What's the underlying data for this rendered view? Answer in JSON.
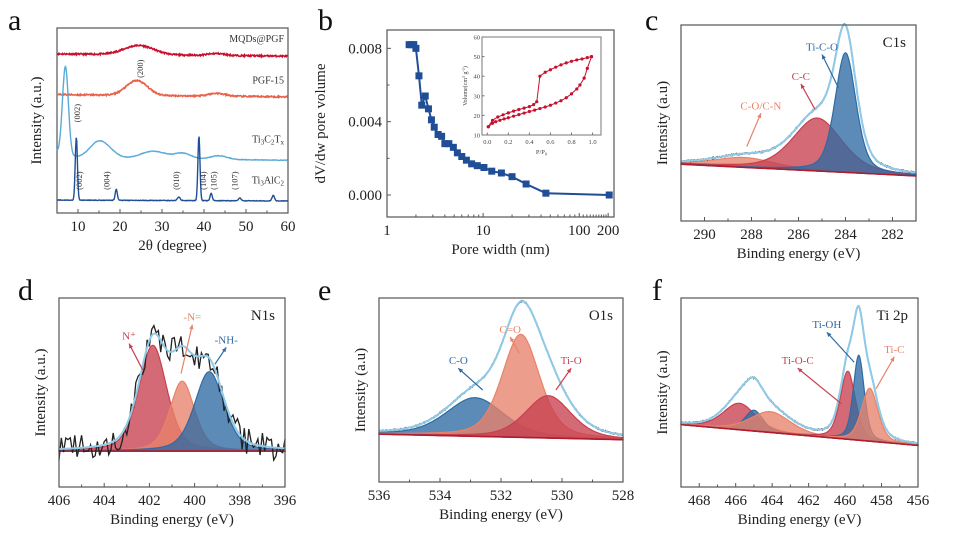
{
  "chart_data": [
    {
      "id": "a",
      "panel_label": "a",
      "type": "line",
      "title": "",
      "xlabel": "2θ (degree)",
      "ylabel": "Intensity (a.u.)",
      "xlim": [
        5,
        60
      ],
      "xticks": [
        10,
        20,
        30,
        40,
        50,
        60
      ],
      "yticks_visible": false,
      "series": [
        {
          "name": "MQDs@PGF",
          "color": "#c8102e",
          "offset": 0.86,
          "profile": "broad_hump",
          "peaks": [
            [
              24.5,
              0.05,
              3.5
            ],
            [
              43,
              0.01,
              2
            ]
          ]
        },
        {
          "name": "PGF-15",
          "color": "#e8624a",
          "offset": 0.64,
          "profile": "broad_hump",
          "peaks": [
            [
              24,
              0.08,
              2.5
            ],
            [
              43,
              0.015,
              2
            ]
          ]
        },
        {
          "name": "Ti3C2Tx",
          "color": "#5aaad8",
          "offset": 0.3,
          "profile": "xrd",
          "peaks": [
            [
              7.0,
              0.48,
              0.7
            ],
            [
              14.5,
              0.07,
              2.0
            ],
            [
              17,
              0.04,
              2
            ],
            [
              28,
              0.04,
              3
            ],
            [
              35,
              0.03,
              2
            ],
            [
              43.5,
              0.02,
              2
            ]
          ]
        },
        {
          "name": "Ti3AlC2",
          "color": "#1f4e96",
          "offset": 0.07,
          "profile": "xrd",
          "peaks": [
            [
              9.6,
              0.34,
              0.25
            ],
            [
              19.1,
              0.06,
              0.25
            ],
            [
              34,
              0.02,
              0.3
            ],
            [
              38.8,
              0.35,
              0.25
            ],
            [
              41.7,
              0.04,
              0.25
            ],
            [
              48.5,
              0.015,
              0.3
            ],
            [
              56.5,
              0.03,
              0.3
            ]
          ]
        }
      ],
      "series_labels": [
        {
          "text": "MQDs@PGF",
          "html": "MQDs@PGF"
        },
        {
          "text": "PGF-15",
          "html": "PGF-15"
        },
        {
          "text": "Ti3C2Tx",
          "main": "Ti",
          "sub1": "3",
          "mid": "C",
          "sub2": "2",
          "end": "T",
          "sub3": "x"
        },
        {
          "text": "Ti3AlC2",
          "main": "Ti",
          "sub1": "3",
          "mid": "AlC",
          "sub2": "2"
        }
      ],
      "annotations": [
        {
          "text": "(200)",
          "x": 25.5,
          "series": "PGF-15"
        },
        {
          "text": "(002)",
          "x": 10.5,
          "series": "Ti3C2Tx"
        },
        {
          "text": "(002)",
          "x": 11.0,
          "series": "Ti3AlC2"
        },
        {
          "text": "(004)",
          "x": 17.5,
          "series": "Ti3AlC2"
        },
        {
          "text": "(010)",
          "x": 34.0,
          "series": "Ti3AlC2"
        },
        {
          "text": "(104)",
          "x": 40.5,
          "series": "Ti3AlC2"
        },
        {
          "text": "(105)",
          "x": 43.0,
          "series": "Ti3AlC2"
        },
        {
          "text": "(107)",
          "x": 48.0,
          "series": "Ti3AlC2"
        }
      ]
    },
    {
      "id": "b",
      "panel_label": "b",
      "type": "line",
      "title": "",
      "xlabel": "Pore width (nm)",
      "ylabel": "dV/dw pore volume",
      "xscale": "log",
      "xlim": [
        1,
        230
      ],
      "ylim": [
        -0.0012,
        0.009
      ],
      "xticks": [
        1,
        10,
        100,
        200
      ],
      "yticks": [
        0.0,
        0.004,
        0.008
      ],
      "ytick_labels": [
        "0.000",
        "0.004",
        "0.008"
      ],
      "series": [
        {
          "name": "pore size distribution",
          "color": "#1f4e96",
          "marker": "square",
          "x": [
            1.7,
            1.8,
            1.9,
            2.0,
            2.15,
            2.3,
            2.5,
            2.7,
            2.9,
            3.1,
            3.4,
            3.7,
            4.0,
            4.4,
            4.9,
            5.4,
            6.0,
            6.7,
            7.6,
            8.7,
            10.2,
            12.3,
            15.5,
            20.0,
            28.0,
            45.0,
            205.0
          ],
          "y": [
            0.0082,
            0.0082,
            0.0082,
            0.008,
            0.0065,
            0.0049,
            0.0054,
            0.0047,
            0.0041,
            0.0037,
            0.0033,
            0.0032,
            0.0028,
            0.0028,
            0.0026,
            0.0023,
            0.0021,
            0.0019,
            0.0017,
            0.0016,
            0.0015,
            0.0013,
            0.0012,
            0.001,
            0.0006,
            0.0001,
            0.0
          ]
        }
      ],
      "inset": {
        "type": "line",
        "xlabel": "P/P0",
        "ylabel": "Volume(cm3 g-1)",
        "xlim": [
          -0.05,
          1.08
        ],
        "ylim": [
          10,
          60
        ],
        "xticks": [
          0.0,
          0.2,
          0.4,
          0.6,
          0.8,
          1.0
        ],
        "xtick_labels": [
          "0.0",
          "0.2",
          "0.4",
          "0.6",
          "0.8",
          "1.0"
        ],
        "yticks": [
          10,
          20,
          30,
          40,
          50,
          60
        ],
        "series": [
          {
            "name": "adsorption",
            "color": "#c8102e",
            "x": [
              0.01,
              0.05,
              0.08,
              0.12,
              0.16,
              0.2,
              0.25,
              0.3,
              0.35,
              0.4,
              0.45,
              0.5,
              0.55,
              0.6,
              0.65,
              0.7,
              0.75,
              0.8,
              0.85,
              0.88,
              0.92,
              0.95,
              0.99
            ],
            "y": [
              14.2,
              16.0,
              16.8,
              17.5,
              18.2,
              18.8,
              19.6,
              20.4,
              21.2,
              22.0,
              22.7,
              23.5,
              24.3,
              25.2,
              26.3,
              27.5,
              29.0,
              31.0,
              33.5,
              35.5,
              39.0,
              44.0,
              50.0
            ]
          },
          {
            "name": "desorption",
            "color": "#c8102e",
            "x": [
              0.99,
              0.95,
              0.9,
              0.85,
              0.8,
              0.75,
              0.7,
              0.65,
              0.6,
              0.55,
              0.5,
              0.47,
              0.44,
              0.4,
              0.35,
              0.3,
              0.25,
              0.2,
              0.15,
              0.1,
              0.05,
              0.01
            ],
            "y": [
              50.0,
              49.5,
              48.8,
              48.3,
              47.6,
              46.8,
              45.8,
              44.6,
              43.3,
              42.0,
              40.0,
              27.0,
              25.5,
              24.5,
              23.7,
              23.0,
              22.2,
              21.3,
              20.3,
              19.2,
              17.5,
              14.2
            ]
          }
        ]
      }
    },
    {
      "id": "c",
      "panel_label": "c",
      "type": "area",
      "title": "C1s",
      "xlabel": "Binding energy (eV)",
      "ylabel": "Intensity (a.u)",
      "xlim": [
        291,
        281
      ],
      "xticks": [
        290,
        288,
        286,
        284,
        282
      ],
      "baseline": {
        "left": 0.29,
        "right": 0.23
      },
      "components": [
        {
          "name": "C-O/C-N",
          "center": 288.3,
          "height": 0.05,
          "width": 1.3,
          "color": "#e8826a",
          "label_color": "#e8826a"
        },
        {
          "name": "C-C",
          "center": 285.2,
          "height": 0.27,
          "width": 1.05,
          "color": "#c8404f",
          "label_color": "#c8404f"
        },
        {
          "name": "Ti-C-O",
          "center": 284.0,
          "height": 0.61,
          "width": 0.45,
          "color": "#2e6aa3",
          "label_color": "#2e6aa3"
        }
      ],
      "envelope_color": "#8fcbe8",
      "raw_color": "#333333",
      "labels": [
        {
          "text": "C-O/C-N",
          "x": 287.6,
          "y": 0.57,
          "arrow_to": [
            288.2,
            0.38
          ]
        },
        {
          "text": "C-C",
          "x": 285.9,
          "y": 0.72,
          "arrow_to": [
            285.3,
            0.57
          ]
        },
        {
          "text": "Ti-C-O",
          "x": 285.0,
          "y": 0.87,
          "arrow_to": [
            284.3,
            0.68
          ]
        }
      ]
    },
    {
      "id": "d",
      "panel_label": "d",
      "type": "area",
      "title": "N1s",
      "xlabel": "Binding energy (eV)",
      "ylabel": "Intensity (a.u.)",
      "xlim": [
        406,
        396
      ],
      "xticks": [
        406,
        404,
        402,
        400,
        398,
        396
      ],
      "baseline": {
        "left": 0.19,
        "right": 0.19
      },
      "components": [
        {
          "name": "N+",
          "center": 401.85,
          "height": 0.56,
          "width": 0.62,
          "color": "#c8404f",
          "label_color": "#c8404f"
        },
        {
          "name": "-N=",
          "center": 400.55,
          "height": 0.37,
          "width": 0.55,
          "color": "#e8826a",
          "label_color": "#e8826a"
        },
        {
          "name": "-NH-",
          "center": 399.35,
          "height": 0.42,
          "width": 0.65,
          "color": "#2e6aa3",
          "label_color": "#2e6aa3"
        }
      ],
      "envelope_color": "#8fcbe8",
      "raw_color": "#222222",
      "noisy": true,
      "labels": [
        {
          "text": "N+",
          "display": "N⁺",
          "x": 402.9,
          "y": 0.78,
          "arrow_to": [
            402.3,
            0.62
          ]
        },
        {
          "text": "-N=",
          "x": 400.1,
          "y": 0.88,
          "arrow_to": [
            400.6,
            0.6
          ]
        },
        {
          "text": "-NH-",
          "x": 398.6,
          "y": 0.76,
          "arrow_to": [
            399.1,
            0.65
          ]
        }
      ]
    },
    {
      "id": "e",
      "panel_label": "e",
      "type": "area",
      "title": "O1s",
      "xlabel": "Binding energy (eV)",
      "ylabel": "Intensity (a.u)",
      "xlim": [
        536,
        528
      ],
      "xticks": [
        536,
        534,
        532,
        530,
        528
      ],
      "baseline": {
        "left": 0.26,
        "right": 0.23
      },
      "components": [
        {
          "name": "C-O",
          "center": 532.85,
          "height": 0.21,
          "width": 0.95,
          "color": "#2e6aa3",
          "label_color": "#2e6aa3"
        },
        {
          "name": "C=O",
          "center": 531.35,
          "height": 0.56,
          "width": 0.62,
          "color": "#e8826a",
          "label_color": "#e8826a"
        },
        {
          "name": "Ti-O",
          "center": 530.45,
          "height": 0.23,
          "width": 0.75,
          "color": "#c8404f",
          "label_color": "#c8404f"
        }
      ],
      "envelope_color": "#8fcbe8",
      "raw_color": "#333333",
      "labels": [
        {
          "text": "C-O",
          "x": 533.4,
          "y": 0.64,
          "arrow_to": [
            532.6,
            0.5
          ]
        },
        {
          "text": "C=O",
          "x": 531.7,
          "y": 0.81,
          "arrow_to": [
            531.4,
            0.7
          ]
        },
        {
          "text": "Ti-O",
          "x": 529.7,
          "y": 0.64,
          "arrow_to": [
            530.2,
            0.5
          ]
        }
      ]
    },
    {
      "id": "f",
      "panel_label": "f",
      "type": "area",
      "title": "Ti 2p",
      "xlabel": "Binding energy (eV)",
      "ylabel": "Intensity (a.u)",
      "xlim": [
        469,
        456
      ],
      "xticks": [
        468,
        466,
        464,
        462,
        460,
        458,
        456
      ],
      "baseline": {
        "left": 0.33,
        "right": 0.22
      },
      "components": [
        {
          "name": "Ti-O-C",
          "center": 465.8,
          "height": 0.14,
          "width": 0.9,
          "color": "#c8404f",
          "label_color": "#c8404f"
        },
        {
          "name": "Ti-OH",
          "center": 465.0,
          "height": 0.11,
          "width": 0.5,
          "color": "#2e6aa3",
          "label_color": "#2e6aa3"
        },
        {
          "name": "Ti-C",
          "center": 464.1,
          "height": 0.11,
          "width": 1.1,
          "color": "#e8826a",
          "label_color": "#e8826a"
        },
        {
          "name": "Ti-O-C",
          "center": 459.85,
          "height": 0.36,
          "width": 0.42,
          "color": "#c8404f",
          "label_color": "#c8404f"
        },
        {
          "name": "Ti-OH",
          "center": 459.25,
          "height": 0.45,
          "width": 0.3,
          "color": "#2e6aa3",
          "label_color": "#2e6aa3"
        },
        {
          "name": "Ti-C",
          "center": 458.65,
          "height": 0.28,
          "width": 0.45,
          "color": "#e8826a",
          "label_color": "#e8826a"
        }
      ],
      "envelope_color": "#8fcbe8",
      "raw_color": "#333333",
      "labels": [
        {
          "text": "Ti-OH",
          "x": 461.0,
          "y": 0.84,
          "arrow_to": [
            459.5,
            0.66
          ]
        },
        {
          "text": "Ti-O-C",
          "x": 462.6,
          "y": 0.65,
          "arrow_to": [
            460.2,
            0.44
          ]
        },
        {
          "text": "Ti-C",
          "x": 457.3,
          "y": 0.71,
          "arrow_to": [
            458.3,
            0.52
          ]
        }
      ]
    }
  ]
}
